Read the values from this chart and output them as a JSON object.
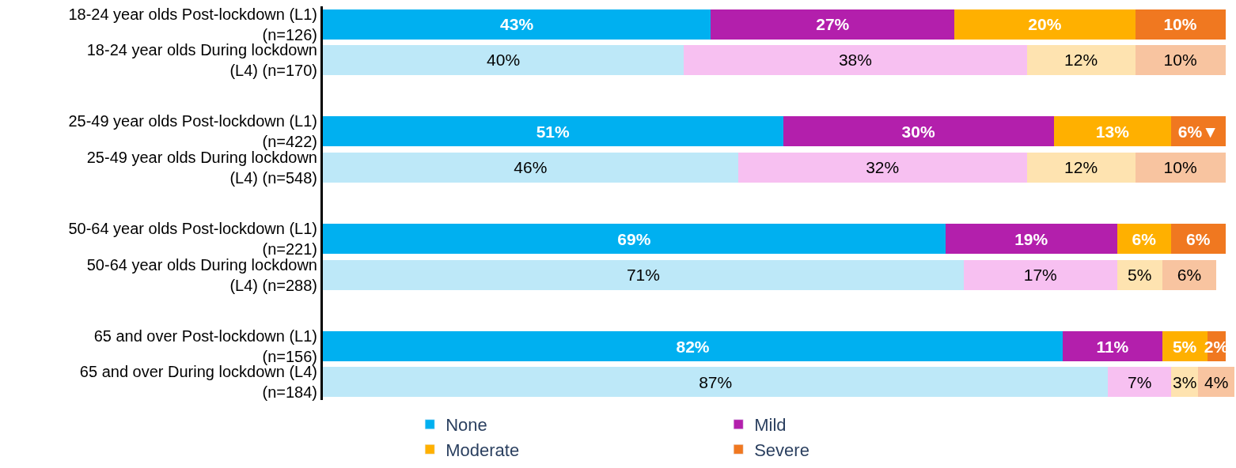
{
  "chart_data": {
    "type": "bar",
    "orientation": "horizontal",
    "stacked": true,
    "legend": "bottom",
    "xlim": [
      0,
      101
    ],
    "tick_labels": "y",
    "categories": [
      "18-24 year olds Post-lockdown (L1)\n(n=126)",
      "18-24 year olds During lockdown\n(L4) (n=170)",
      null,
      "25-49 year olds Post-lockdown (L1)\n(n=422)",
      "25-49 year olds During lockdown\n(L4) (n=548)",
      null,
      "50-64 year olds Post-lockdown (L1)\n(n=221)",
      "50-64 year olds During lockdown\n(L4) (n=288)",
      null,
      "65 and over Post-lockdown (L1)\n(n=156)",
      "65 and over During lockdown (L4)\n(n=184)"
    ],
    "series": [
      {
        "name": "None",
        "color": "#00b0f0",
        "values": [
          43,
          40,
          null,
          51,
          46,
          null,
          69,
          71,
          null,
          82,
          87
        ],
        "value_labels": [
          "43%",
          "40%",
          null,
          "51%",
          "46%",
          null,
          "69%",
          "71%",
          null,
          "82%",
          "87%"
        ],
        "colors": [
          "#00b0f0",
          "#bde8f8",
          "#ffffff",
          "#00b0f0",
          "#bde8f8",
          "#ffffff",
          "#00b0f0",
          "#bde8f8",
          "#ffffff",
          "#00b0f0",
          "#bde8f8"
        ]
      },
      {
        "name": "Mild",
        "color": "#b31fac",
        "values": [
          27,
          38,
          null,
          30,
          32,
          null,
          19,
          17,
          null,
          11,
          7
        ],
        "value_labels": [
          "27%",
          "38%",
          null,
          "30%",
          "32%",
          null,
          "19%",
          "17%",
          null,
          "11%",
          "7%"
        ],
        "colors": [
          "#b31fac",
          "#f7c0f1",
          "#ffffff",
          "#b31fac",
          "#f7c0f1",
          "#ffffff",
          "#b31fac",
          "#f7c0f1",
          "#ffffff",
          "#b31fac",
          "#f7c0f1"
        ]
      },
      {
        "name": "Moderate",
        "color": "#ffb000",
        "values": [
          20,
          12,
          null,
          13,
          12,
          null,
          6,
          5,
          null,
          5,
          3
        ],
        "value_labels": [
          "20%",
          "12%",
          null,
          "13%",
          "12%",
          null,
          "6%",
          "5%",
          null,
          "5%",
          "3%"
        ],
        "colors": [
          "#ffb000",
          "#fee3b0",
          "#ffffff",
          "#ffb000",
          "#fee3b0",
          "#ffffff",
          "#ffb000",
          "#fee3b0",
          "#ffffff",
          "#ffb000",
          "#fee3b0"
        ]
      },
      {
        "name": "Severe",
        "color": "#f07820",
        "values": [
          10,
          10,
          null,
          6,
          10,
          null,
          6,
          6,
          null,
          2,
          4
        ],
        "value_labels": [
          "10%",
          "10%",
          null,
          "6%▼",
          "10%",
          null,
          "6%",
          "6%",
          null,
          "2%",
          "4%"
        ],
        "colors": [
          "#f07820",
          "#f8c4a0",
          "#ffffff",
          "#f07820",
          "#f8c4a0",
          "#ffffff",
          "#f07820",
          "#f8c4a0",
          "#ffffff",
          "#f07820",
          "#f8c4a0"
        ]
      }
    ]
  }
}
